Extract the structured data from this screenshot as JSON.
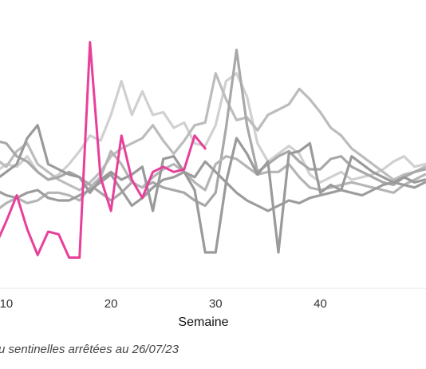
{
  "chart_data": {
    "type": "line",
    "xlabel": "Semaine",
    "caption": "u sentinelles arrêtées au  26/07/23",
    "x_ticks": [
      10,
      20,
      30,
      40
    ],
    "xlim": [
      9.4,
      50.1
    ],
    "ylim": [
      0,
      10
    ],
    "grid": false,
    "legend": "none",
    "highlight_color": "#e8409a",
    "series": [
      {
        "color": "#d0d0d0",
        "x": [
          9,
          10,
          11,
          12,
          13,
          14,
          15,
          16,
          17,
          18,
          19,
          20,
          21,
          22,
          23,
          24,
          25,
          26,
          27,
          28,
          29,
          30,
          31,
          32,
          33,
          34,
          35,
          36,
          37,
          38,
          39,
          40,
          41,
          42,
          43,
          44,
          45,
          46,
          47,
          48,
          49,
          50
        ],
        "y": [
          4.3,
          4.6,
          4.5,
          4.9,
          4.3,
          4.0,
          4.2,
          4.6,
          5.1,
          5.7,
          5.5,
          6.5,
          7.8,
          6.5,
          7.4,
          6.5,
          6.6,
          6.0,
          6.2,
          5.4,
          5.3,
          6.1,
          7.8,
          8.1,
          7.2,
          5.4,
          4.7,
          5.0,
          5.3,
          5.0,
          4.2,
          3.9,
          4.1,
          4.3,
          4.0,
          4.1,
          4.2,
          4.4,
          4.7,
          4.9,
          4.5,
          4.6
        ]
      },
      {
        "color": "#bcbcbc",
        "x": [
          9,
          10,
          11,
          12,
          13,
          14,
          15,
          16,
          17,
          18,
          19,
          20,
          21,
          22,
          23,
          24,
          25,
          26,
          27,
          28,
          29,
          30,
          31,
          32,
          33,
          34,
          35,
          36,
          37,
          38,
          39,
          40,
          41,
          42,
          43,
          44,
          45,
          46,
          47,
          48,
          49,
          50
        ],
        "y": [
          4.8,
          4.5,
          5.1,
          5.4,
          4.6,
          4.3,
          4.0,
          3.8,
          3.6,
          3.9,
          4.3,
          4.9,
          5.2,
          5.4,
          5.6,
          6.1,
          5.5,
          5.0,
          5.5,
          6.1,
          6.2,
          8.1,
          7.1,
          6.3,
          6.4,
          5.9,
          6.5,
          6.7,
          6.9,
          7.5,
          7.1,
          6.6,
          6.0,
          5.7,
          5.2,
          4.9,
          4.6,
          4.3,
          4.0,
          4.2,
          4.3,
          4.5
        ]
      },
      {
        "color": "#a8a8a8",
        "x": [
          9,
          10,
          11,
          12,
          13,
          14,
          15,
          16,
          17,
          18,
          19,
          20,
          21,
          22,
          23,
          24,
          25,
          26,
          27,
          28,
          29,
          30,
          31,
          32,
          33,
          34,
          35,
          36,
          37,
          38,
          39,
          40,
          41,
          42,
          43,
          44,
          45,
          46,
          47,
          48,
          49,
          50
        ],
        "y": [
          5.5,
          5.4,
          4.9,
          4.7,
          4.3,
          4.0,
          4.1,
          4.3,
          4.1,
          3.8,
          3.5,
          3.2,
          3.5,
          3.9,
          3.7,
          3.9,
          3.7,
          3.6,
          3.5,
          3.2,
          3.0,
          3.5,
          6.0,
          9.0,
          6.1,
          4.3,
          4.6,
          4.9,
          5.1,
          4.7,
          4.4,
          4.4,
          4.8,
          4.9,
          4.5,
          4.3,
          4.1,
          3.9,
          3.8,
          4.1,
          4.3,
          4.4
        ]
      },
      {
        "color": "#b5b5b5",
        "x": [
          9,
          10,
          11,
          12,
          13,
          14,
          15,
          16,
          17,
          18,
          19,
          20,
          21,
          22,
          23,
          24,
          25,
          26,
          27,
          28,
          29,
          30,
          31,
          32,
          33,
          34,
          35,
          36,
          37,
          38,
          39,
          40,
          41,
          42,
          43,
          44,
          45,
          46,
          47,
          48,
          49,
          50
        ],
        "y": [
          2.8,
          3.1,
          3.3,
          3.1,
          3.2,
          3.5,
          3.5,
          3.4,
          3.2,
          3.7,
          4.1,
          5.1,
          4.6,
          3.9,
          3.7,
          4.1,
          4.4,
          4.6,
          4.3,
          3.9,
          3.6,
          4.6,
          4.9,
          4.8,
          4.5,
          4.2,
          4.3,
          4.3,
          4.6,
          4.1,
          3.7,
          3.6,
          3.7,
          3.8,
          3.9,
          3.8,
          3.7,
          3.6,
          3.5,
          3.8,
          4.0,
          4.2
        ]
      },
      {
        "color": "#9c9c9c",
        "x": [
          9,
          10,
          11,
          12,
          13,
          14,
          15,
          16,
          17,
          18,
          19,
          20,
          21,
          22,
          23,
          24,
          25,
          26,
          27,
          28,
          29,
          30,
          31,
          32,
          33,
          34,
          35,
          36,
          37,
          38,
          39,
          40,
          41,
          42,
          43,
          44,
          45,
          46,
          47,
          48,
          49,
          50
        ],
        "y": [
          3.6,
          3.4,
          3.3,
          3.5,
          3.6,
          3.3,
          3.2,
          3.2,
          3.4,
          3.6,
          3.9,
          4.2,
          3.6,
          3.0,
          3.3,
          3.7,
          4.0,
          4.1,
          4.3,
          4.1,
          4.7,
          4.3,
          3.9,
          3.5,
          3.2,
          3.0,
          2.8,
          3.0,
          3.2,
          3.1,
          3.3,
          3.4,
          3.5,
          3.6,
          3.5,
          3.4,
          3.6,
          3.8,
          3.9,
          3.8,
          3.7,
          3.9
        ]
      },
      {
        "color": "#9a9a9a",
        "x": [
          9,
          10,
          11,
          12,
          13,
          14,
          15,
          16,
          17,
          18,
          19,
          20,
          21,
          22,
          23,
          24,
          25,
          26,
          27,
          28,
          29,
          30,
          31,
          32,
          33,
          34,
          35,
          36,
          37,
          38,
          39,
          40,
          41,
          42,
          43,
          44,
          45,
          46,
          47,
          48,
          49,
          50
        ],
        "y": [
          4.0,
          4.3,
          4.6,
          5.6,
          6.1,
          4.6,
          4.4,
          4.2,
          4.1,
          3.5,
          4.0,
          4.3,
          4.0,
          4.2,
          4.5,
          2.8,
          4.8,
          4.9,
          4.3,
          3.6,
          1.2,
          1.2,
          3.9,
          5.6,
          5.0,
          4.2,
          4.7,
          1.2,
          5.0,
          5.1,
          5.4,
          3.5,
          3.8,
          3.6,
          4.9,
          4.6,
          4.3,
          4.1,
          3.9,
          4.1,
          3.9,
          4.0
        ]
      },
      {
        "color": "#e8409a",
        "x": [
          9,
          10,
          11,
          12,
          13,
          14,
          15,
          16,
          17,
          18,
          19,
          20,
          21,
          22,
          23,
          24,
          25,
          26,
          27,
          28,
          29
        ],
        "y": [
          1.5,
          2.4,
          3.4,
          2.1,
          1.1,
          2.0,
          1.9,
          1.0,
          1.0,
          9.3,
          4.1,
          2.8,
          5.7,
          4.0,
          3.3,
          4.3,
          4.5,
          4.3,
          4.4,
          5.7,
          5.2
        ]
      }
    ]
  }
}
